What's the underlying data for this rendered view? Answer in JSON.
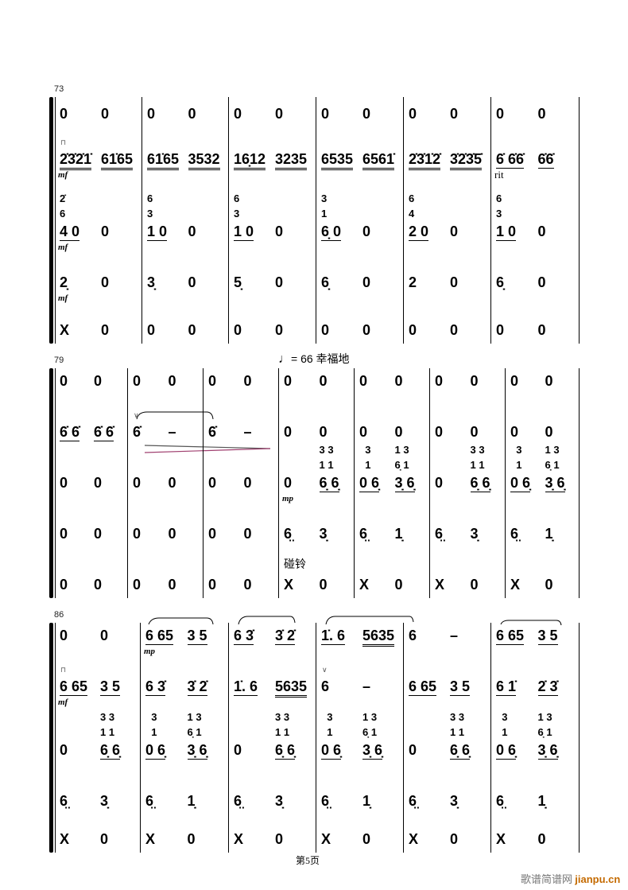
{
  "tempo": {
    "note_icon": "quarter-note-icon",
    "text": "= 66 幸福地"
  },
  "footer": {
    "page": "第5页"
  },
  "watermark": {
    "cn": "歌谱简谱网",
    "site": "jianpu.cn"
  },
  "systems": [
    {
      "number": "73",
      "measures": [
        {
          "rows": [
            [
              {
                "t": "0"
              },
              {
                "t": "0"
              }
            ],
            [
              {
                "t": "2̇3̇2̇1̇",
                "u": 2,
                "mark": "⊓",
                "dyn": "mf"
              },
              {
                "t": "61̇65",
                "u": 2
              }
            ],
            [
              {
                "t": "4 0",
                "u": 1,
                "st": [
                  "2̇",
                  "6"
                ],
                "dyn": "mf"
              },
              {
                "t": "0"
              }
            ],
            [
              {
                "t": "2̣",
                "dyn": "mf"
              },
              {
                "t": "0"
              }
            ],
            [
              {
                "t": "X"
              },
              {
                "t": "0"
              }
            ]
          ]
        },
        {
          "rows": [
            [
              {
                "t": "0"
              },
              {
                "t": "0"
              }
            ],
            [
              {
                "t": "61̇65",
                "u": 2
              },
              {
                "t": "3532",
                "u": 2
              }
            ],
            [
              {
                "t": "1 0",
                "u": 1,
                "st": [
                  "6",
                  "3"
                ]
              },
              {
                "t": "0"
              }
            ],
            [
              {
                "t": "3̣"
              },
              {
                "t": "0"
              }
            ],
            [
              {
                "t": "0"
              },
              {
                "t": "0"
              }
            ]
          ]
        },
        {
          "rows": [
            [
              {
                "t": "0"
              },
              {
                "t": "0"
              }
            ],
            [
              {
                "t": "16̣12",
                "u": 2
              },
              {
                "t": "3235",
                "u": 2
              }
            ],
            [
              {
                "t": "1 0",
                "u": 1,
                "st": [
                  "6",
                  "3"
                ]
              },
              {
                "t": "0"
              }
            ],
            [
              {
                "t": "5̣"
              },
              {
                "t": "0"
              }
            ],
            [
              {
                "t": "0"
              },
              {
                "t": "0"
              }
            ]
          ]
        },
        {
          "rows": [
            [
              {
                "t": "0"
              },
              {
                "t": "0"
              }
            ],
            [
              {
                "t": "6535",
                "u": 2
              },
              {
                "t": "6561̇",
                "u": 2
              }
            ],
            [
              {
                "t": "6̣ 0",
                "u": 1,
                "st": [
                  "3",
                  "1"
                ]
              },
              {
                "t": "0"
              }
            ],
            [
              {
                "t": "6̣"
              },
              {
                "t": "0"
              }
            ],
            [
              {
                "t": "0"
              },
              {
                "t": "0"
              }
            ]
          ]
        },
        {
          "rows": [
            [
              {
                "t": "0"
              },
              {
                "t": "0"
              }
            ],
            [
              {
                "t": "2̇3̇1̇2̇",
                "u": 2
              },
              {
                "t": "3̇2̇3̇5̇",
                "u": 2
              }
            ],
            [
              {
                "t": "2 0",
                "u": 1,
                "st": [
                  "6",
                  "4"
                ]
              },
              {
                "t": "0"
              }
            ],
            [
              {
                "t": "2"
              },
              {
                "t": "0"
              }
            ],
            [
              {
                "t": "0"
              },
              {
                "t": "0"
              }
            ]
          ]
        },
        {
          "rows": [
            [
              {
                "t": "0"
              },
              {
                "t": "0"
              }
            ],
            [
              {
                "t": "6̇ 6̇6̇",
                "u": 1,
                "dyn": "rit"
              },
              {
                "t": "6̇6̇",
                "u": 1
              }
            ],
            [
              {
                "t": "1 0",
                "u": 1,
                "st": [
                  "6",
                  "3"
                ]
              },
              {
                "t": "0"
              }
            ],
            [
              {
                "t": "6̣"
              },
              {
                "t": "0"
              }
            ],
            [
              {
                "t": "0"
              },
              {
                "t": "0"
              }
            ]
          ]
        }
      ]
    },
    {
      "number": "79",
      "measures": [
        {
          "rows": [
            [
              {
                "t": "0"
              },
              {
                "t": "0"
              }
            ],
            [
              {
                "t": "6̇ 6̇",
                "u": 1
              },
              {
                "t": "6̇ 6̇",
                "u": 1
              }
            ],
            [
              {
                "t": "0"
              },
              {
                "t": "0"
              }
            ],
            [
              {
                "t": "0"
              },
              {
                "t": "0"
              }
            ],
            [
              {
                "t": "0"
              },
              {
                "t": "0"
              }
            ]
          ]
        },
        {
          "rows": [
            [
              {
                "t": "0"
              },
              {
                "t": "0"
              }
            ],
            [
              {
                "t": "6̇",
                "mark": "∨"
              },
              {
                "t": "–"
              }
            ],
            [
              {
                "t": "0"
              },
              {
                "t": "0"
              }
            ],
            [
              {
                "t": "0"
              },
              {
                "t": "0"
              }
            ],
            [
              {
                "t": "0"
              },
              {
                "t": "0"
              }
            ]
          ]
        },
        {
          "rows": [
            [
              {
                "t": "0"
              },
              {
                "t": "0"
              }
            ],
            [
              {
                "t": "6̇"
              },
              {
                "t": "–"
              }
            ],
            [
              {
                "t": "0"
              },
              {
                "t": "0"
              }
            ],
            [
              {
                "t": "0"
              },
              {
                "t": "0"
              }
            ],
            [
              {
                "t": "0"
              },
              {
                "t": "0"
              }
            ]
          ]
        },
        {
          "rows": [
            [
              {
                "t": "0"
              },
              {
                "t": "0"
              }
            ],
            [
              {
                "t": "0"
              },
              {
                "t": "0"
              }
            ],
            [
              {
                "t": "0",
                "dyn": "mp"
              },
              {
                "t": "6̣ 6̣",
                "u": 1,
                "st": [
                  "3 3",
                  "1 1"
                ]
              }
            ],
            [
              {
                "t": "6̤"
              },
              {
                "t": "3̣"
              }
            ],
            [
              {
                "t": "X",
                "label": "碰铃"
              },
              {
                "t": "0"
              }
            ]
          ]
        },
        {
          "rows": [
            [
              {
                "t": "0"
              },
              {
                "t": "0"
              }
            ],
            [
              {
                "t": "0"
              },
              {
                "t": "0"
              }
            ],
            [
              {
                "t": "0 6̣",
                "u": 1,
                "st": [
                  "  3",
                  "  1"
                ]
              },
              {
                "t": "3̣ 6̣",
                "u": 1,
                "st": [
                  "1 3",
                  "6̣ 1"
                ]
              }
            ],
            [
              {
                "t": "6̤"
              },
              {
                "t": "1̣"
              }
            ],
            [
              {
                "t": "X"
              },
              {
                "t": "0"
              }
            ]
          ]
        },
        {
          "rows": [
            [
              {
                "t": "0"
              },
              {
                "t": "0"
              }
            ],
            [
              {
                "t": "0"
              },
              {
                "t": "0"
              }
            ],
            [
              {
                "t": "0"
              },
              {
                "t": "6̣ 6̣",
                "u": 1,
                "st": [
                  "3 3",
                  "1 1"
                ]
              }
            ],
            [
              {
                "t": "6̤"
              },
              {
                "t": "3̣"
              }
            ],
            [
              {
                "t": "X"
              },
              {
                "t": "0"
              }
            ]
          ]
        },
        {
          "rows": [
            [
              {
                "t": "0"
              },
              {
                "t": "0"
              }
            ],
            [
              {
                "t": "0"
              },
              {
                "t": "0"
              }
            ],
            [
              {
                "t": "0 6̣",
                "u": 1,
                "st": [
                  "  3",
                  "  1"
                ]
              },
              {
                "t": "3̣ 6̣",
                "u": 1,
                "st": [
                  "1 3",
                  "6̣ 1"
                ]
              }
            ],
            [
              {
                "t": "6̤"
              },
              {
                "t": "1̣"
              }
            ],
            [
              {
                "t": "X"
              },
              {
                "t": "0"
              }
            ]
          ]
        }
      ]
    },
    {
      "number": "86",
      "measures": [
        {
          "rows": [
            [
              {
                "t": "0"
              },
              {
                "t": "0"
              }
            ],
            [
              {
                "t": "6 65",
                "u": 1,
                "mark": "⊓",
                "dyn": "mf",
                "slur": true
              },
              {
                "t": "3 5",
                "u": 1,
                "slur": true
              }
            ],
            [
              {
                "t": "0"
              },
              {
                "t": "6̣ 6̣",
                "u": 1,
                "st": [
                  "3 3",
                  "1 1"
                ]
              }
            ],
            [
              {
                "t": "6̤"
              },
              {
                "t": "3̣"
              }
            ],
            [
              {
                "t": "X"
              },
              {
                "t": "0"
              }
            ]
          ]
        },
        {
          "rows": [
            [
              {
                "t": "6 65",
                "u": 1,
                "dyn": "mp",
                "slur": true
              },
              {
                "t": "3 5",
                "u": 1
              }
            ],
            [
              {
                "t": "6 3̇",
                "u": 1,
                "slur": true
              },
              {
                "t": "3̇ 2̇",
                "u": 1,
                "slur": true
              }
            ],
            [
              {
                "t": "0 6̣",
                "u": 1,
                "st": [
                  "  3",
                  "  1"
                ]
              },
              {
                "t": "3̣ 6̣",
                "u": 1,
                "st": [
                  "1 3",
                  "6̣ 1"
                ]
              }
            ],
            [
              {
                "t": "6̤"
              },
              {
                "t": "1̣"
              }
            ],
            [
              {
                "t": "X"
              },
              {
                "t": "0"
              }
            ]
          ]
        },
        {
          "rows": [
            [
              {
                "t": "6 3̇",
                "u": 1,
                "slur": true
              },
              {
                "t": "3̇ 2̇",
                "u": 1
              }
            ],
            [
              {
                "t": "1̇. 6",
                "u": 1,
                "slur": true
              },
              {
                "t": "5635",
                "u": 2,
                "slur": true
              }
            ],
            [
              {
                "t": "0"
              },
              {
                "t": "6̣ 6̣",
                "u": 1,
                "st": [
                  "3 3",
                  "1 1"
                ]
              }
            ],
            [
              {
                "t": "6̤"
              },
              {
                "t": "3̣"
              }
            ],
            [
              {
                "t": "X"
              },
              {
                "t": "0"
              }
            ]
          ]
        },
        {
          "rows": [
            [
              {
                "t": "1̇. 6",
                "u": 1,
                "slur": true
              },
              {
                "t": "5635",
                "u": 2
              }
            ],
            [
              {
                "t": "6",
                "mark": "∨"
              },
              {
                "t": "–"
              }
            ],
            [
              {
                "t": "0 6̣",
                "u": 1,
                "st": [
                  "  3",
                  "  1"
                ]
              },
              {
                "t": "3̣ 6̣",
                "u": 1,
                "st": [
                  "1 3",
                  "6̣ 1"
                ]
              }
            ],
            [
              {
                "t": "6̤"
              },
              {
                "t": "1̣"
              }
            ],
            [
              {
                "t": "X"
              },
              {
                "t": "0"
              }
            ]
          ]
        },
        {
          "rows": [
            [
              {
                "t": "6"
              },
              {
                "t": "–"
              }
            ],
            [
              {
                "t": "6 65",
                "u": 1,
                "slur": true
              },
              {
                "t": "3 5",
                "u": 1,
                "slur": true
              }
            ],
            [
              {
                "t": "0"
              },
              {
                "t": "6̣ 6̣",
                "u": 1,
                "st": [
                  "3 3",
                  "1 1"
                ]
              }
            ],
            [
              {
                "t": "6̤"
              },
              {
                "t": "3̣"
              }
            ],
            [
              {
                "t": "X"
              },
              {
                "t": "0"
              }
            ]
          ]
        },
        {
          "rows": [
            [
              {
                "t": "6 65",
                "u": 1,
                "slur": true
              },
              {
                "t": "3 5",
                "u": 1
              }
            ],
            [
              {
                "t": "6 1̇",
                "u": 1,
                "slur": true
              },
              {
                "t": "2̇ 3̇",
                "u": 1,
                "slur": true
              }
            ],
            [
              {
                "t": "0 6̣",
                "u": 1,
                "st": [
                  "  3",
                  "  1"
                ]
              },
              {
                "t": "3̣ 6̣",
                "u": 1,
                "st": [
                  "1 3",
                  "6̣ 1"
                ]
              }
            ],
            [
              {
                "t": "6̤"
              },
              {
                "t": "1̣"
              }
            ],
            [
              {
                "t": "X"
              },
              {
                "t": "0"
              }
            ]
          ]
        }
      ]
    }
  ]
}
